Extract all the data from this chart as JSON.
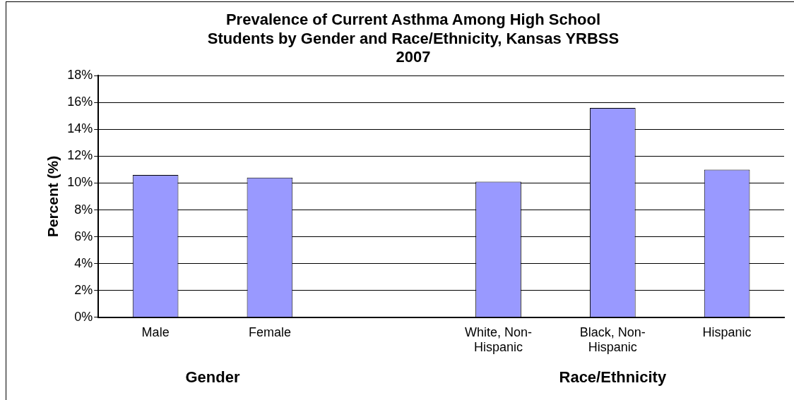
{
  "chart_data": {
    "type": "bar",
    "title": "Prevalence of Current Asthma Among High School Students by Gender and Race/Ethnicity, Kansas YRBSS 2007",
    "ylabel": "Percent (%)",
    "categories": [
      "Male",
      "Female",
      null,
      "White, Non-Hispanic",
      "Black, Non-Hispanic",
      "Hispanic"
    ],
    "values": [
      10.6,
      10.4,
      null,
      10.1,
      15.6,
      11.0
    ],
    "color": "#9999ff",
    "ylim": [
      0,
      18
    ],
    "yticks": [
      {
        "value": 0,
        "label": "0%"
      },
      {
        "value": 2,
        "label": "2%"
      },
      {
        "value": 4,
        "label": "4%"
      },
      {
        "value": 6,
        "label": "6%"
      },
      {
        "value": 8,
        "label": "8%"
      },
      {
        "value": 10,
        "label": "10%"
      },
      {
        "value": 12,
        "label": "12%"
      },
      {
        "value": 14,
        "label": "14%"
      },
      {
        "value": 16,
        "label": "16%"
      },
      {
        "value": 18,
        "label": "18%"
      }
    ],
    "grid": "y",
    "legend": false,
    "annotations": [
      "Gender",
      "Race/Ethnicity"
    ]
  }
}
